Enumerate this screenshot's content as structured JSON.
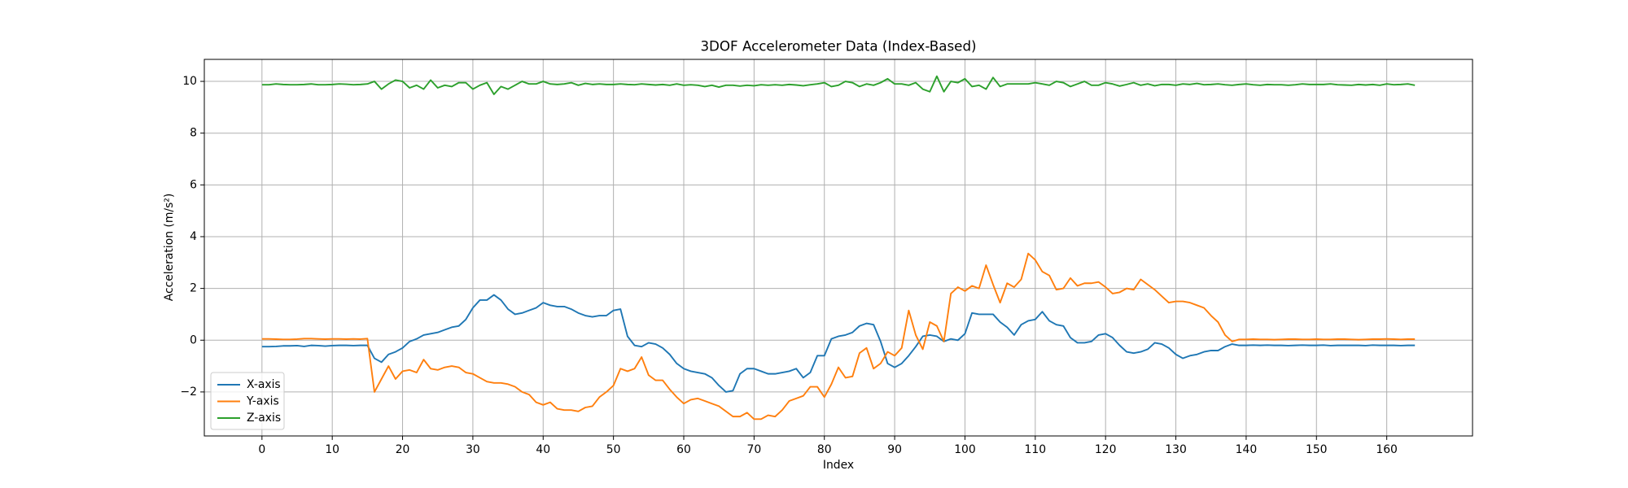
{
  "chart_data": {
    "type": "line",
    "title": "3DOF Accelerometer Data (Index-Based)",
    "x_label": "Index",
    "y_label": "Acceleration (m/s²)",
    "x": [
      0,
      1,
      2,
      3,
      4,
      5,
      6,
      7,
      8,
      9,
      10,
      11,
      12,
      13,
      14,
      15,
      16,
      17,
      18,
      19,
      20,
      21,
      22,
      23,
      24,
      25,
      26,
      27,
      28,
      29,
      30,
      31,
      32,
      33,
      34,
      35,
      36,
      37,
      38,
      39,
      40,
      41,
      42,
      43,
      44,
      45,
      46,
      47,
      48,
      49,
      50,
      51,
      52,
      53,
      54,
      55,
      56,
      57,
      58,
      59,
      60,
      61,
      62,
      63,
      64,
      65,
      66,
      67,
      68,
      69,
      70,
      71,
      72,
      73,
      74,
      75,
      76,
      77,
      78,
      79,
      80,
      81,
      82,
      83,
      84,
      85,
      86,
      87,
      88,
      89,
      90,
      91,
      92,
      93,
      94,
      95,
      96,
      97,
      98,
      99,
      100,
      101,
      102,
      103,
      104,
      105,
      106,
      107,
      108,
      109,
      110,
      111,
      112,
      113,
      114,
      115,
      116,
      117,
      118,
      119,
      120,
      121,
      122,
      123,
      124,
      125,
      126,
      127,
      128,
      129,
      130,
      131,
      132,
      133,
      134,
      135,
      136,
      137,
      138,
      139,
      140,
      141,
      142,
      143,
      144,
      145,
      146,
      147,
      148,
      149,
      150,
      151,
      152,
      153,
      154,
      155,
      156,
      157,
      158,
      159,
      160,
      161,
      162,
      163,
      164
    ],
    "series": [
      {
        "name": "X-axis",
        "color": "#1f77b4",
        "values": [
          -0.25,
          -0.25,
          -0.24,
          -0.22,
          -0.22,
          -0.21,
          -0.24,
          -0.2,
          -0.21,
          -0.23,
          -0.21,
          -0.2,
          -0.2,
          -0.21,
          -0.2,
          -0.2,
          -0.7,
          -0.85,
          -0.55,
          -0.45,
          -0.3,
          -0.05,
          0.05,
          0.2,
          0.25,
          0.3,
          0.4,
          0.5,
          0.55,
          0.8,
          1.25,
          1.55,
          1.55,
          1.75,
          1.55,
          1.2,
          1.0,
          1.05,
          1.15,
          1.25,
          1.45,
          1.35,
          1.3,
          1.3,
          1.2,
          1.05,
          0.95,
          0.9,
          0.95,
          0.95,
          1.15,
          1.2,
          0.15,
          -0.2,
          -0.25,
          -0.1,
          -0.15,
          -0.3,
          -0.55,
          -0.9,
          -1.1,
          -1.2,
          -1.25,
          -1.3,
          -1.45,
          -1.75,
          -2.0,
          -1.95,
          -1.3,
          -1.1,
          -1.1,
          -1.2,
          -1.3,
          -1.3,
          -1.25,
          -1.2,
          -1.1,
          -1.45,
          -1.25,
          -0.6,
          -0.6,
          0.05,
          0.15,
          0.2,
          0.3,
          0.55,
          0.65,
          0.6,
          -0.05,
          -0.9,
          -1.05,
          -0.9,
          -0.6,
          -0.25,
          0.15,
          0.2,
          0.15,
          -0.05,
          0.05,
          0.0,
          0.25,
          1.05,
          1.0,
          1.0,
          1.0,
          0.7,
          0.5,
          0.2,
          0.6,
          0.75,
          0.8,
          1.1,
          0.75,
          0.6,
          0.55,
          0.1,
          -0.1,
          -0.1,
          -0.05,
          0.2,
          0.25,
          0.1,
          -0.2,
          -0.45,
          -0.5,
          -0.45,
          -0.35,
          -0.1,
          -0.15,
          -0.3,
          -0.55,
          -0.7,
          -0.6,
          -0.55,
          -0.45,
          -0.4,
          -0.4,
          -0.25,
          -0.15,
          -0.2,
          -0.2,
          -0.19,
          -0.2,
          -0.19,
          -0.2,
          -0.2,
          -0.21,
          -0.2,
          -0.19,
          -0.2,
          -0.2,
          -0.19,
          -0.21,
          -0.2,
          -0.2,
          -0.2,
          -0.2,
          -0.21,
          -0.19,
          -0.2,
          -0.2,
          -0.2,
          -0.21,
          -0.2,
          -0.2
        ]
      },
      {
        "name": "Y-axis",
        "color": "#ff7f0e",
        "values": [
          0.05,
          0.05,
          0.04,
          0.03,
          0.03,
          0.04,
          0.06,
          0.06,
          0.05,
          0.04,
          0.05,
          0.05,
          0.04,
          0.05,
          0.04,
          0.06,
          -2.0,
          -1.5,
          -1.0,
          -1.5,
          -1.2,
          -1.15,
          -1.25,
          -0.75,
          -1.1,
          -1.15,
          -1.05,
          -1.0,
          -1.05,
          -1.25,
          -1.3,
          -1.45,
          -1.6,
          -1.65,
          -1.65,
          -1.7,
          -1.8,
          -2.0,
          -2.1,
          -2.4,
          -2.5,
          -2.4,
          -2.65,
          -2.7,
          -2.7,
          -2.75,
          -2.6,
          -2.55,
          -2.2,
          -2.0,
          -1.75,
          -1.1,
          -1.2,
          -1.1,
          -0.65,
          -1.35,
          -1.55,
          -1.55,
          -1.9,
          -2.2,
          -2.45,
          -2.3,
          -2.25,
          -2.35,
          -2.45,
          -2.55,
          -2.75,
          -2.95,
          -2.95,
          -2.8,
          -3.05,
          -3.05,
          -2.9,
          -2.95,
          -2.7,
          -2.35,
          -2.25,
          -2.15,
          -1.8,
          -1.8,
          -2.2,
          -1.7,
          -1.05,
          -1.45,
          -1.4,
          -0.5,
          -0.3,
          -1.1,
          -0.9,
          -0.45,
          -0.6,
          -0.3,
          1.15,
          0.2,
          -0.35,
          0.7,
          0.55,
          -0.05,
          1.8,
          2.05,
          1.9,
          2.1,
          2.0,
          2.9,
          2.15,
          1.45,
          2.2,
          2.05,
          2.35,
          3.35,
          3.1,
          2.65,
          2.5,
          1.95,
          2.0,
          2.4,
          2.1,
          2.2,
          2.2,
          2.25,
          2.05,
          1.8,
          1.85,
          2.0,
          1.95,
          2.35,
          2.15,
          1.95,
          1.7,
          1.45,
          1.5,
          1.5,
          1.45,
          1.35,
          1.25,
          0.95,
          0.7,
          0.2,
          -0.05,
          0.03,
          0.03,
          0.04,
          0.03,
          0.03,
          0.02,
          0.03,
          0.04,
          0.04,
          0.03,
          0.03,
          0.04,
          0.03,
          0.03,
          0.04,
          0.04,
          0.03,
          0.02,
          0.03,
          0.04,
          0.04,
          0.05,
          0.04,
          0.03,
          0.04,
          0.04
        ]
      },
      {
        "name": "Z-axis",
        "color": "#2ca02c",
        "values": [
          9.87,
          9.87,
          9.9,
          9.88,
          9.87,
          9.87,
          9.88,
          9.9,
          9.87,
          9.87,
          9.88,
          9.9,
          9.89,
          9.87,
          9.88,
          9.9,
          10.0,
          9.7,
          9.9,
          10.05,
          10.0,
          9.75,
          9.85,
          9.7,
          10.05,
          9.75,
          9.85,
          9.8,
          9.95,
          9.95,
          9.7,
          9.85,
          9.95,
          9.5,
          9.8,
          9.7,
          9.85,
          10.0,
          9.9,
          9.9,
          10.0,
          9.9,
          9.88,
          9.9,
          9.95,
          9.85,
          9.92,
          9.88,
          9.9,
          9.88,
          9.88,
          9.9,
          9.88,
          9.87,
          9.9,
          9.88,
          9.86,
          9.88,
          9.85,
          9.9,
          9.85,
          9.87,
          9.85,
          9.8,
          9.85,
          9.78,
          9.85,
          9.85,
          9.82,
          9.85,
          9.83,
          9.87,
          9.85,
          9.87,
          9.85,
          9.88,
          9.86,
          9.83,
          9.87,
          9.9,
          9.95,
          9.8,
          9.85,
          10.0,
          9.95,
          9.8,
          9.9,
          9.85,
          9.95,
          10.1,
          9.9,
          9.9,
          9.85,
          9.95,
          9.7,
          9.6,
          10.2,
          9.6,
          10.0,
          9.95,
          10.1,
          9.8,
          9.85,
          9.7,
          10.15,
          9.8,
          9.9,
          9.9,
          9.9,
          9.9,
          9.95,
          9.9,
          9.85,
          10.0,
          9.95,
          9.8,
          9.9,
          10.0,
          9.85,
          9.85,
          9.95,
          9.9,
          9.82,
          9.88,
          9.95,
          9.85,
          9.9,
          9.83,
          9.88,
          9.88,
          9.85,
          9.9,
          9.88,
          9.92,
          9.87,
          9.88,
          9.9,
          9.87,
          9.85,
          9.88,
          9.9,
          9.87,
          9.85,
          9.88,
          9.87,
          9.87,
          9.85,
          9.87,
          9.9,
          9.88,
          9.88,
          9.88,
          9.9,
          9.87,
          9.86,
          9.85,
          9.88,
          9.86,
          9.88,
          9.85,
          9.9,
          9.87,
          9.88,
          9.9,
          9.85
        ]
      }
    ],
    "xlim": [
      -8.2,
      172.2
    ],
    "ylim": [
      -3.7,
      10.85
    ],
    "xticks": [
      0,
      10,
      20,
      30,
      40,
      50,
      60,
      70,
      80,
      90,
      100,
      110,
      120,
      130,
      140,
      150,
      160
    ],
    "yticks": [
      {
        "value": -2,
        "label": "−2"
      },
      0,
      2,
      4,
      6,
      8,
      10
    ],
    "grid": true,
    "legend": "lower left"
  }
}
